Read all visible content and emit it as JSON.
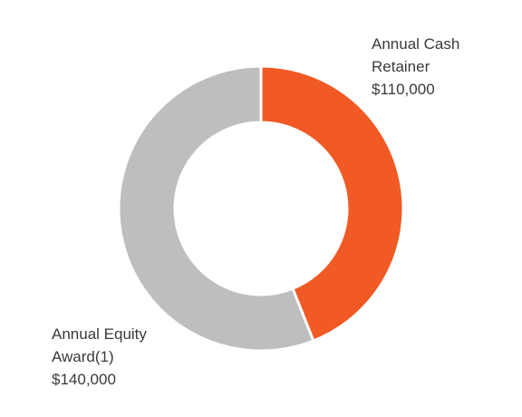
{
  "chart_data": {
    "type": "donut",
    "categories": [
      "Annual Cash Retainer",
      "Annual Equity Award(1)"
    ],
    "values": [
      110000,
      140000
    ],
    "value_labels": [
      "$110,000",
      "$140,000"
    ],
    "colors": [
      "#f15a24",
      "#bcbec0"
    ]
  }
}
